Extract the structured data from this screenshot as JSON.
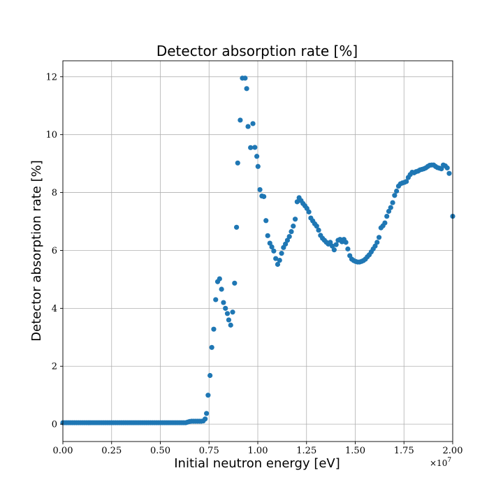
{
  "chart_data": {
    "type": "scatter",
    "title": "Detector absorption rate [%]",
    "xlabel": "Initial neutron energy [eV]",
    "ylabel": "Detector absorption rate [%]",
    "x_scale_label": "×10",
    "x_scale_exponent": "7",
    "xlim": [
      0,
      2.0
    ],
    "ylim": [
      -0.6,
      12.55
    ],
    "grid": true,
    "marker_color": "#1f77b4",
    "x_ticks": [
      "0.00",
      "0.25",
      "0.50",
      "0.75",
      "1.00",
      "1.25",
      "1.50",
      "1.75",
      "2.00"
    ],
    "y_ticks": [
      "0",
      "2",
      "4",
      "6",
      "8",
      "10",
      "12"
    ],
    "series": [
      {
        "points": [
          [
            0.0,
            0.05
          ],
          [
            0.01,
            0.05
          ],
          [
            0.02,
            0.05
          ],
          [
            0.03,
            0.05
          ],
          [
            0.04,
            0.05
          ],
          [
            0.05,
            0.05
          ],
          [
            0.06,
            0.05
          ],
          [
            0.07,
            0.05
          ],
          [
            0.08,
            0.05
          ],
          [
            0.09,
            0.05
          ],
          [
            0.1,
            0.05
          ],
          [
            0.11,
            0.05
          ],
          [
            0.12,
            0.05
          ],
          [
            0.13,
            0.05
          ],
          [
            0.14,
            0.05
          ],
          [
            0.15,
            0.05
          ],
          [
            0.16,
            0.05
          ],
          [
            0.17,
            0.05
          ],
          [
            0.18,
            0.05
          ],
          [
            0.19,
            0.05
          ],
          [
            0.2,
            0.05
          ],
          [
            0.21,
            0.05
          ],
          [
            0.22,
            0.05
          ],
          [
            0.23,
            0.05
          ],
          [
            0.24,
            0.05
          ],
          [
            0.25,
            0.05
          ],
          [
            0.26,
            0.05
          ],
          [
            0.27,
            0.05
          ],
          [
            0.28,
            0.05
          ],
          [
            0.29,
            0.05
          ],
          [
            0.3,
            0.05
          ],
          [
            0.31,
            0.05
          ],
          [
            0.32,
            0.05
          ],
          [
            0.33,
            0.05
          ],
          [
            0.34,
            0.05
          ],
          [
            0.35,
            0.05
          ],
          [
            0.36,
            0.05
          ],
          [
            0.37,
            0.05
          ],
          [
            0.38,
            0.05
          ],
          [
            0.39,
            0.05
          ],
          [
            0.4,
            0.05
          ],
          [
            0.41,
            0.05
          ],
          [
            0.42,
            0.05
          ],
          [
            0.43,
            0.05
          ],
          [
            0.44,
            0.05
          ],
          [
            0.45,
            0.05
          ],
          [
            0.46,
            0.05
          ],
          [
            0.47,
            0.05
          ],
          [
            0.48,
            0.05
          ],
          [
            0.49,
            0.05
          ],
          [
            0.5,
            0.05
          ],
          [
            0.51,
            0.05
          ],
          [
            0.52,
            0.05
          ],
          [
            0.53,
            0.05
          ],
          [
            0.54,
            0.05
          ],
          [
            0.55,
            0.05
          ],
          [
            0.56,
            0.05
          ],
          [
            0.57,
            0.05
          ],
          [
            0.58,
            0.05
          ],
          [
            0.59,
            0.05
          ],
          [
            0.6,
            0.05
          ],
          [
            0.61,
            0.05
          ],
          [
            0.62,
            0.05
          ],
          [
            0.63,
            0.05
          ],
          [
            0.64,
            0.07
          ],
          [
            0.65,
            0.09
          ],
          [
            0.66,
            0.1
          ],
          [
            0.67,
            0.1
          ],
          [
            0.68,
            0.1
          ],
          [
            0.69,
            0.1
          ],
          [
            0.7,
            0.1
          ],
          [
            0.71,
            0.1
          ],
          [
            0.72,
            0.11
          ],
          [
            0.73,
            0.18
          ],
          [
            0.737,
            0.37
          ],
          [
            0.745,
            1.0
          ],
          [
            0.755,
            1.68
          ],
          [
            0.764,
            2.65
          ],
          [
            0.774,
            3.28
          ],
          [
            0.784,
            4.3
          ],
          [
            0.794,
            4.92
          ],
          [
            0.804,
            5.02
          ],
          [
            0.814,
            4.66
          ],
          [
            0.824,
            4.2
          ],
          [
            0.834,
            4.0
          ],
          [
            0.844,
            3.82
          ],
          [
            0.851,
            3.6
          ],
          [
            0.861,
            3.42
          ],
          [
            0.871,
            3.87
          ],
          [
            0.881,
            4.87
          ],
          [
            0.891,
            6.8
          ],
          [
            0.897,
            9.02
          ],
          [
            0.91,
            10.5
          ],
          [
            0.921,
            11.95
          ],
          [
            0.935,
            11.95
          ],
          [
            0.943,
            11.59
          ],
          [
            0.95,
            10.28
          ],
          [
            0.963,
            9.55
          ],
          [
            0.975,
            10.38
          ],
          [
            0.985,
            9.56
          ],
          [
            0.995,
            9.25
          ],
          [
            1.001,
            8.9
          ],
          [
            1.011,
            8.1
          ],
          [
            1.021,
            7.88
          ],
          [
            1.031,
            7.86
          ],
          [
            1.042,
            7.03
          ],
          [
            1.051,
            6.51
          ],
          [
            1.062,
            6.25
          ],
          [
            1.072,
            6.12
          ],
          [
            1.082,
            5.98
          ],
          [
            1.092,
            5.72
          ],
          [
            1.102,
            5.52
          ],
          [
            1.112,
            5.66
          ],
          [
            1.122,
            5.9
          ],
          [
            1.132,
            6.1
          ],
          [
            1.142,
            6.22
          ],
          [
            1.152,
            6.35
          ],
          [
            1.162,
            6.48
          ],
          [
            1.172,
            6.65
          ],
          [
            1.182,
            6.84
          ],
          [
            1.192,
            7.08
          ],
          [
            1.202,
            7.68
          ],
          [
            1.212,
            7.82
          ],
          [
            1.222,
            7.72
          ],
          [
            1.232,
            7.62
          ],
          [
            1.242,
            7.54
          ],
          [
            1.252,
            7.45
          ],
          [
            1.262,
            7.33
          ],
          [
            1.272,
            7.12
          ],
          [
            1.282,
            7.02
          ],
          [
            1.292,
            6.92
          ],
          [
            1.302,
            6.84
          ],
          [
            1.312,
            6.7
          ],
          [
            1.322,
            6.52
          ],
          [
            1.332,
            6.42
          ],
          [
            1.342,
            6.35
          ],
          [
            1.352,
            6.28
          ],
          [
            1.362,
            6.22
          ],
          [
            1.372,
            6.28
          ],
          [
            1.382,
            6.15
          ],
          [
            1.392,
            6.02
          ],
          [
            1.402,
            6.2
          ],
          [
            1.412,
            6.35
          ],
          [
            1.422,
            6.38
          ],
          [
            1.432,
            6.3
          ],
          [
            1.442,
            6.38
          ],
          [
            1.452,
            6.28
          ],
          [
            1.462,
            6.05
          ],
          [
            1.472,
            5.82
          ],
          [
            1.482,
            5.7
          ],
          [
            1.492,
            5.65
          ],
          [
            1.502,
            5.62
          ],
          [
            1.512,
            5.6
          ],
          [
            1.522,
            5.6
          ],
          [
            1.532,
            5.62
          ],
          [
            1.542,
            5.65
          ],
          [
            1.552,
            5.7
          ],
          [
            1.562,
            5.78
          ],
          [
            1.572,
            5.85
          ],
          [
            1.582,
            5.95
          ],
          [
            1.592,
            6.05
          ],
          [
            1.602,
            6.15
          ],
          [
            1.612,
            6.28
          ],
          [
            1.622,
            6.45
          ],
          [
            1.632,
            6.78
          ],
          [
            1.642,
            6.85
          ],
          [
            1.652,
            6.95
          ],
          [
            1.662,
            7.18
          ],
          [
            1.672,
            7.35
          ],
          [
            1.682,
            7.48
          ],
          [
            1.692,
            7.65
          ],
          [
            1.702,
            7.9
          ],
          [
            1.712,
            8.05
          ],
          [
            1.722,
            8.22
          ],
          [
            1.732,
            8.3
          ],
          [
            1.742,
            8.33
          ],
          [
            1.752,
            8.35
          ],
          [
            1.762,
            8.38
          ],
          [
            1.772,
            8.52
          ],
          [
            1.782,
            8.62
          ],
          [
            1.792,
            8.7
          ],
          [
            1.802,
            8.68
          ],
          [
            1.812,
            8.72
          ],
          [
            1.822,
            8.74
          ],
          [
            1.832,
            8.78
          ],
          [
            1.842,
            8.8
          ],
          [
            1.852,
            8.82
          ],
          [
            1.862,
            8.85
          ],
          [
            1.872,
            8.9
          ],
          [
            1.882,
            8.94
          ],
          [
            1.892,
            8.95
          ],
          [
            1.902,
            8.95
          ],
          [
            1.912,
            8.9
          ],
          [
            1.922,
            8.86
          ],
          [
            1.932,
            8.84
          ],
          [
            1.942,
            8.82
          ],
          [
            1.952,
            8.95
          ],
          [
            1.962,
            8.92
          ],
          [
            1.972,
            8.85
          ],
          [
            1.982,
            8.66
          ],
          [
            2.0,
            7.18
          ]
        ]
      }
    ]
  }
}
